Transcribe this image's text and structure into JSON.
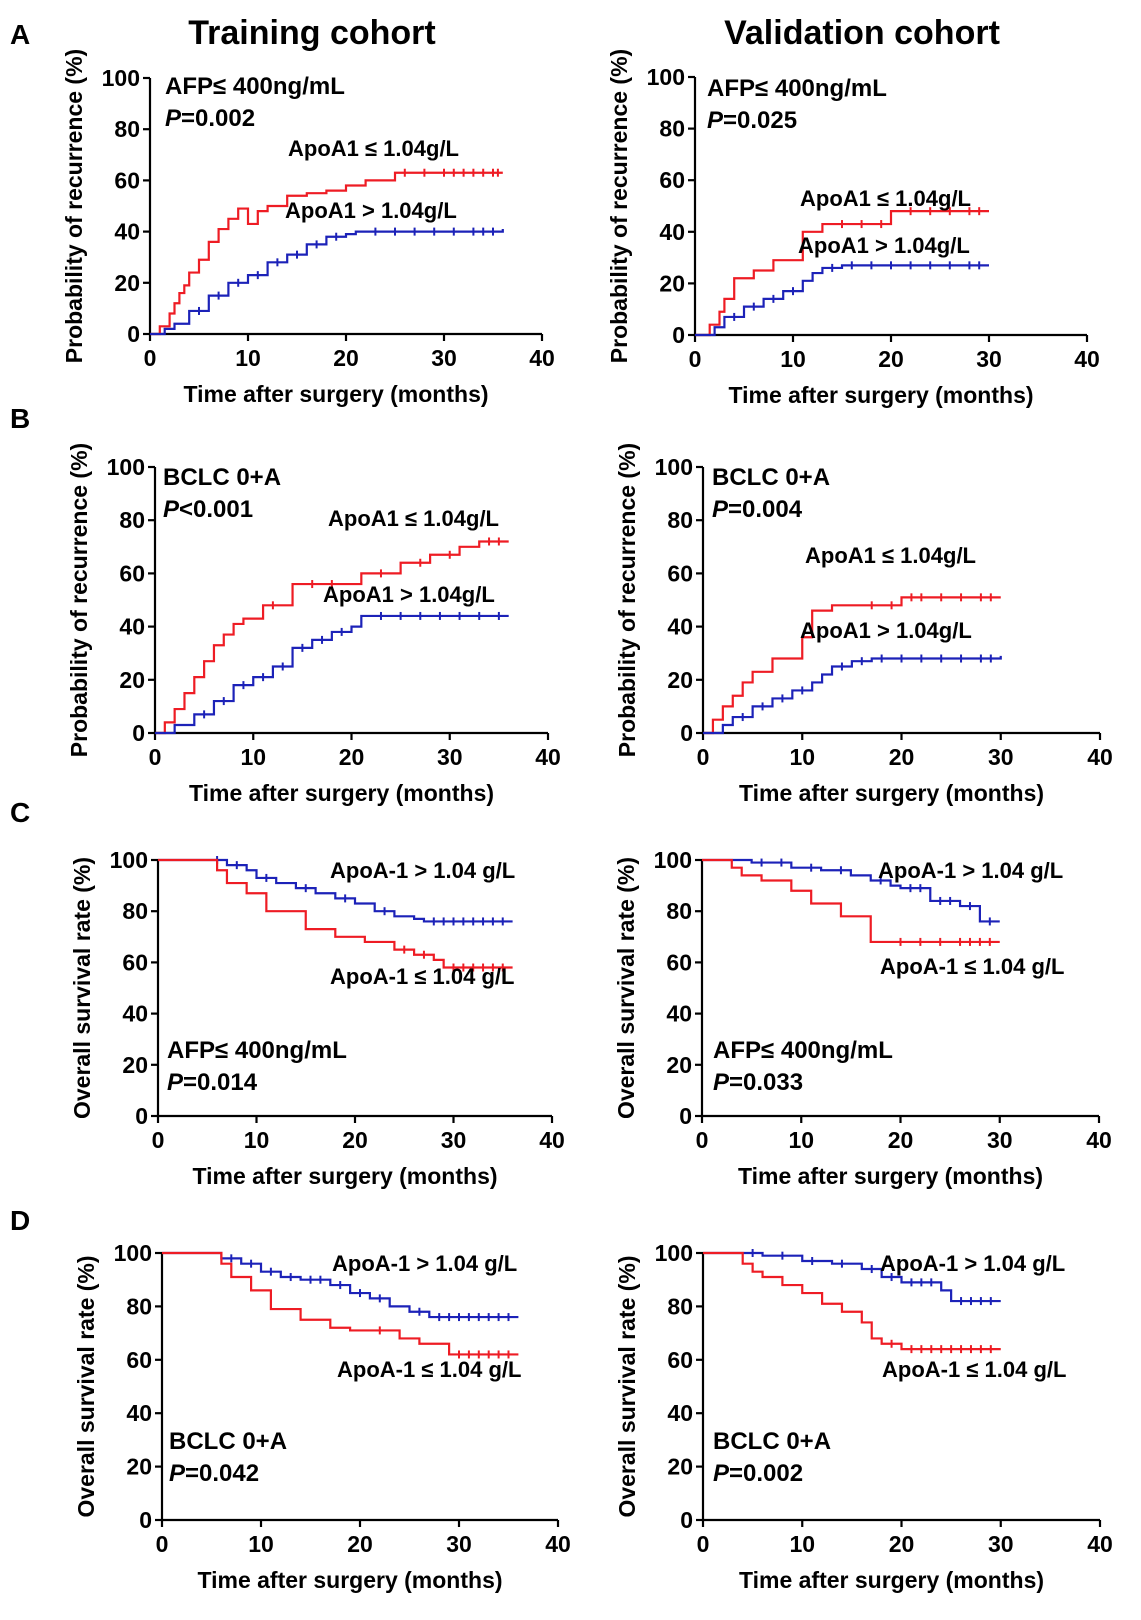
{
  "column_titles": [
    "Training cohort",
    "Validation cohort"
  ],
  "panel_letters": [
    "A",
    "B",
    "C",
    "D"
  ],
  "colors": {
    "low_apoa1": "#ee1c24",
    "high_apoa1": "#1c22b8",
    "axis": "#000000"
  },
  "chart_data": [
    {
      "id": "A-training",
      "type": "line",
      "subtype": "kaplan-meier-cumulative-incidence",
      "ylabel": "Probability of recurrence (%)",
      "xlabel": "Time after surgery (months)",
      "xlim": [
        0,
        40
      ],
      "ylim": [
        0,
        100
      ],
      "xticks": [
        0,
        10,
        20,
        30,
        40
      ],
      "yticks": [
        0,
        20,
        40,
        60,
        80,
        100
      ],
      "subgroup": "AFP≤ 400ng/mL",
      "p_value": "=0.002",
      "series": [
        {
          "name": "ApoA1 ≤  1.04g/L",
          "color": "#ee1c24",
          "x": [
            0,
            1,
            2,
            2.5,
            3,
            3.5,
            4,
            5,
            6,
            7,
            8,
            9,
            10,
            11,
            12,
            14,
            16,
            18,
            20,
            22,
            25,
            36
          ],
          "y": [
            0,
            3,
            8,
            12,
            16,
            19,
            24,
            29,
            36,
            41,
            45,
            49,
            43,
            48,
            50,
            54,
            55,
            56,
            58,
            60,
            63,
            63
          ],
          "censor_x": [
            26,
            28,
            30,
            31,
            32,
            33,
            34,
            35,
            35.5
          ]
        },
        {
          "name": "ApoA1 > 1.04g/L",
          "color": "#1c22b8",
          "x": [
            0,
            1.5,
            2.5,
            4,
            6,
            8,
            10,
            12,
            14,
            16,
            18,
            20,
            21,
            36
          ],
          "y": [
            0,
            2,
            4,
            9,
            15,
            20,
            23,
            28,
            31,
            35,
            38,
            39,
            40,
            41
          ],
          "censor_x": [
            5,
            7,
            9,
            11,
            13,
            15,
            17,
            19,
            23,
            25,
            27,
            29,
            31,
            33,
            34,
            35
          ]
        }
      ],
      "annotations": [
        "ApoA1 ≤  1.04g/L",
        "ApoA1 > 1.04g/L"
      ]
    },
    {
      "id": "A-validation",
      "type": "line",
      "subtype": "kaplan-meier-cumulative-incidence",
      "ylabel": "Probability of recurrence (%)",
      "xlabel": "Time after surgery (months)",
      "xlim": [
        0,
        40
      ],
      "ylim": [
        0,
        100
      ],
      "xticks": [
        0,
        10,
        20,
        30,
        40
      ],
      "yticks": [
        0,
        20,
        40,
        60,
        80,
        100
      ],
      "subgroup": "AFP≤ 400ng/mL",
      "p_value": "=0.025",
      "series": [
        {
          "name": "ApoA1 ≤  1.04g/L",
          "color": "#ee1c24",
          "x": [
            0,
            1.5,
            2.5,
            3,
            4,
            6,
            8,
            11,
            13,
            20,
            30
          ],
          "y": [
            0,
            4,
            9,
            14,
            22,
            25,
            29,
            40,
            43,
            48,
            48
          ],
          "censor_x": [
            15,
            17,
            19,
            22,
            24,
            26,
            28,
            29
          ]
        },
        {
          "name": "ApoA1 > 1.04g/L",
          "color": "#1c22b8",
          "x": [
            0,
            2,
            3,
            5,
            7,
            9,
            11,
            12,
            13,
            15,
            30
          ],
          "y": [
            0,
            3,
            7,
            11,
            14,
            17,
            21,
            24,
            26,
            27,
            27
          ],
          "censor_x": [
            4,
            6,
            8,
            10,
            14,
            16,
            18,
            20,
            22,
            24,
            26,
            28,
            29
          ]
        }
      ],
      "annotations": [
        "ApoA1 ≤  1.04g/L",
        "ApoA1 > 1.04g/L"
      ]
    },
    {
      "id": "B-training",
      "type": "line",
      "subtype": "kaplan-meier-cumulative-incidence",
      "ylabel": "Probability of recurrence (%)",
      "xlabel": "Time after surgery (months)",
      "xlim": [
        0,
        40
      ],
      "ylim": [
        0,
        100
      ],
      "xticks": [
        0,
        10,
        20,
        30,
        40
      ],
      "yticks": [
        0,
        20,
        40,
        60,
        80,
        100
      ],
      "subgroup": "BCLC 0+A",
      "p_value": "<0.001",
      "series": [
        {
          "name": "ApoA1 ≤  1.04g/L",
          "color": "#ee1c24",
          "x": [
            0,
            1,
            2,
            3,
            4,
            5,
            6,
            7,
            8,
            9,
            11,
            14,
            21,
            25,
            28,
            31,
            33,
            36
          ],
          "y": [
            0,
            4,
            9,
            15,
            21,
            27,
            33,
            37,
            41,
            43,
            48,
            56,
            60,
            64,
            67,
            70,
            72,
            72
          ],
          "censor_x": [
            12,
            16,
            18,
            23,
            27,
            30,
            34,
            35
          ]
        },
        {
          "name": "ApoA1 > 1.04g/L",
          "color": "#1c22b8",
          "x": [
            0,
            2,
            4,
            6,
            8,
            10,
            12,
            14,
            16,
            18,
            20,
            21,
            36
          ],
          "y": [
            0,
            3,
            7,
            12,
            18,
            21,
            25,
            32,
            35,
            38,
            40,
            44,
            44
          ],
          "censor_x": [
            5,
            7,
            9,
            11,
            13,
            15,
            17,
            19,
            23,
            25,
            27,
            29,
            31,
            33,
            35
          ]
        }
      ],
      "annotations": [
        "ApoA1 ≤  1.04g/L",
        "ApoA1 > 1.04g/L"
      ]
    },
    {
      "id": "B-validation",
      "type": "line",
      "subtype": "kaplan-meier-cumulative-incidence",
      "ylabel": "Probability of recurrence (%)",
      "xlabel": "Time after surgery (months)",
      "xlim": [
        0,
        40
      ],
      "ylim": [
        0,
        100
      ],
      "xticks": [
        0,
        10,
        20,
        30,
        40
      ],
      "yticks": [
        0,
        20,
        40,
        60,
        80,
        100
      ],
      "subgroup": "BCLC 0+A",
      "p_value": "=0.004",
      "series": [
        {
          "name": "ApoA1 ≤  1.04g/L",
          "color": "#ee1c24",
          "x": [
            0,
            1,
            2,
            3,
            4,
            5,
            7,
            10,
            11,
            13,
            20,
            30
          ],
          "y": [
            0,
            5,
            10,
            14,
            19,
            23,
            28,
            36,
            46,
            48,
            51,
            51
          ],
          "censor_x": [
            17,
            19,
            21,
            22,
            24,
            26,
            28,
            29
          ]
        },
        {
          "name": "ApoA1 > 1.04g/L",
          "color": "#1c22b8",
          "x": [
            0,
            2,
            3,
            5,
            7,
            9,
            11,
            12,
            13,
            15,
            17,
            30
          ],
          "y": [
            0,
            3,
            6,
            10,
            13,
            16,
            19,
            22,
            25,
            27,
            28,
            29
          ],
          "censor_x": [
            4,
            6,
            8,
            10,
            14,
            16,
            18,
            20,
            22,
            24,
            26,
            28,
            29
          ]
        }
      ],
      "annotations": [
        "ApoA1 ≤  1.04g/L",
        "ApoA1 > 1.04g/L"
      ]
    },
    {
      "id": "C-training",
      "type": "line",
      "subtype": "kaplan-meier-survival",
      "ylabel": "Overall survival rate (%)",
      "xlabel": "Time after surgery (months)",
      "xlim": [
        0,
        40
      ],
      "ylim": [
        0,
        100
      ],
      "xticks": [
        0,
        10,
        20,
        30,
        40
      ],
      "yticks": [
        0,
        20,
        40,
        60,
        80,
        100
      ],
      "subgroup": "AFP≤ 400ng/mL",
      "p_value": "=0.014",
      "series": [
        {
          "name": "ApoA-1 > 1.04 g/L",
          "color": "#1c22b8",
          "x": [
            0,
            7,
            9,
            10,
            12,
            14,
            16,
            18,
            20,
            22,
            24,
            26,
            27,
            36
          ],
          "y": [
            100,
            98,
            96,
            93,
            91,
            89,
            87,
            85,
            83,
            80,
            78,
            77,
            76,
            76
          ],
          "censor_x": [
            6,
            8,
            11,
            15,
            19,
            23,
            28,
            29,
            30,
            31,
            32,
            33,
            34,
            35
          ]
        },
        {
          "name": "ApoA-1 ≤  1.04 g/L",
          "color": "#ee1c24",
          "x": [
            0,
            6,
            7,
            9,
            11,
            15,
            18,
            21,
            24,
            26,
            28,
            29,
            36
          ],
          "y": [
            100,
            96,
            91,
            87,
            80,
            73,
            70,
            68,
            65,
            63,
            61,
            58,
            58
          ],
          "censor_x": [
            25,
            27,
            30,
            31,
            32,
            33,
            34,
            35
          ]
        }
      ],
      "annotations": [
        "ApoA-1 > 1.04 g/L",
        "ApoA-1 ≤  1.04 g/L"
      ]
    },
    {
      "id": "C-validation",
      "type": "line",
      "subtype": "kaplan-meier-survival",
      "ylabel": "Overall survival rate (%)",
      "xlabel": "Time after surgery (months)",
      "xlim": [
        0,
        40
      ],
      "ylim": [
        0,
        100
      ],
      "xticks": [
        0,
        10,
        20,
        30,
        40
      ],
      "yticks": [
        0,
        20,
        40,
        60,
        80,
        100
      ],
      "subgroup": "AFP≤ 400ng/mL",
      "p_value": "=0.033",
      "series": [
        {
          "name": "ApoA-1 > 1.04 g/L",
          "color": "#1c22b8",
          "x": [
            0,
            5,
            9,
            12,
            15,
            17,
            19,
            20,
            23,
            26,
            28,
            30
          ],
          "y": [
            100,
            99,
            97,
            96,
            94,
            92,
            90,
            89,
            84,
            82,
            76,
            76
          ],
          "censor_x": [
            6,
            8,
            11,
            14,
            18,
            21,
            22,
            24,
            25,
            27,
            29
          ]
        },
        {
          "name": "ApoA-1 ≤  1.04 g/L",
          "color": "#ee1c24",
          "x": [
            0,
            3,
            4,
            6,
            9,
            11,
            14,
            17,
            30
          ],
          "y": [
            100,
            97,
            94,
            92,
            88,
            83,
            78,
            68,
            68
          ],
          "censor_x": [
            20,
            22,
            24,
            26,
            27,
            28,
            29
          ]
        }
      ],
      "annotations": [
        "ApoA-1 > 1.04 g/L",
        "ApoA-1 ≤  1.04 g/L"
      ]
    },
    {
      "id": "D-training",
      "type": "line",
      "subtype": "kaplan-meier-survival",
      "ylabel": "Overall survival rate (%)",
      "xlabel": "Time after surgery (months)",
      "xlim": [
        0,
        40
      ],
      "ylim": [
        0,
        100
      ],
      "xticks": [
        0,
        10,
        20,
        30,
        40
      ],
      "yticks": [
        0,
        20,
        40,
        60,
        80,
        100
      ],
      "subgroup": "BCLC 0+A",
      "p_value": "=0.042",
      "series": [
        {
          "name": "ApoA-1 > 1.04 g/L",
          "color": "#1c22b8",
          "x": [
            0,
            6,
            8,
            10,
            12,
            14,
            17,
            19,
            21,
            23,
            25,
            27,
            36
          ],
          "y": [
            100,
            98,
            96,
            93,
            91,
            90,
            88,
            85,
            83,
            80,
            78,
            76,
            76
          ],
          "censor_x": [
            7,
            9,
            11,
            13,
            15,
            16,
            18,
            20,
            22,
            26,
            28,
            29,
            30,
            31,
            32,
            33,
            34,
            35
          ]
        },
        {
          "name": "ApoA-1 ≤  1.04 g/L",
          "color": "#ee1c24",
          "x": [
            0,
            6,
            7,
            9,
            11,
            14,
            17,
            19,
            24,
            26,
            29,
            36
          ],
          "y": [
            100,
            96,
            91,
            86,
            79,
            75,
            72,
            71,
            68,
            66,
            62,
            62
          ],
          "censor_x": [
            22,
            30,
            31,
            32,
            33,
            34,
            35
          ]
        }
      ],
      "annotations": [
        "ApoA-1 > 1.04 g/L",
        "ApoA-1 ≤  1.04 g/L"
      ]
    },
    {
      "id": "D-validation",
      "type": "line",
      "subtype": "kaplan-meier-survival",
      "ylabel": "Overall survival rate (%)",
      "xlabel": "Time after surgery (months)",
      "xlim": [
        0,
        40
      ],
      "ylim": [
        0,
        100
      ],
      "xticks": [
        0,
        10,
        20,
        30,
        40
      ],
      "yticks": [
        0,
        20,
        40,
        60,
        80,
        100
      ],
      "subgroup": "BCLC 0+A",
      "p_value": "=0.002",
      "series": [
        {
          "name": "ApoA-1 > 1.04 g/L",
          "color": "#1c22b8",
          "x": [
            0,
            6,
            10,
            13,
            16,
            18,
            20,
            24,
            25,
            30
          ],
          "y": [
            100,
            99,
            97,
            96,
            94,
            91,
            89,
            86,
            82,
            82
          ],
          "censor_x": [
            5,
            8,
            11,
            14,
            17,
            19,
            21,
            22,
            23,
            26,
            27,
            28,
            29
          ]
        },
        {
          "name": "ApoA-1 ≤  1.04 g/L",
          "color": "#ee1c24",
          "x": [
            0,
            4,
            5,
            6,
            8,
            10,
            12,
            14,
            16,
            17,
            18,
            20,
            30
          ],
          "y": [
            100,
            96,
            93,
            91,
            88,
            85,
            81,
            78,
            74,
            68,
            66,
            64,
            64
          ],
          "censor_x": [
            19,
            21,
            22,
            23,
            24,
            25,
            26,
            27,
            28,
            29
          ]
        }
      ],
      "annotations": [
        "ApoA-1 > 1.04 g/L",
        "ApoA-1 ≤  1.04 g/L"
      ]
    }
  ]
}
